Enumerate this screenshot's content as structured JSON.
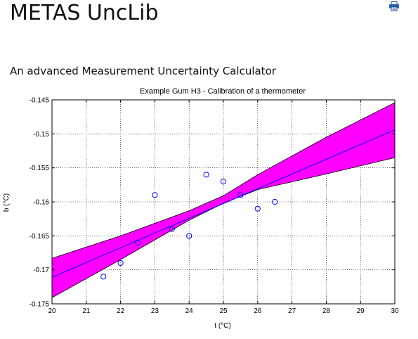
{
  "page": {
    "site_title": "METAS UncLib",
    "subtitle": "An advanced Measurement Uncertainty Calculator",
    "print_icon": "print-icon"
  },
  "colors": {
    "band": "#ff00ff",
    "fit_line": "#0000ff",
    "points": "#0000ff"
  },
  "chart_data": {
    "type": "scatter",
    "title": "Example Gum H3 - Calibration of a thermometer",
    "xlabel": "t (°C)",
    "ylabel": "b (°C)",
    "xlim": [
      20,
      30
    ],
    "ylim": [
      -0.175,
      -0.145
    ],
    "xticks": [
      20,
      21,
      22,
      23,
      24,
      25,
      26,
      27,
      28,
      29,
      30
    ],
    "yticks": [
      -0.175,
      -0.17,
      -0.165,
      -0.16,
      -0.155,
      -0.15,
      -0.145
    ],
    "ytick_labels": [
      "-0.175",
      "-0.17",
      "-0.165",
      "-0.16",
      "-0.155",
      "-0.15",
      "-0.145"
    ],
    "grid": true,
    "points": [
      {
        "x": 21.5,
        "y": -0.171
      },
      {
        "x": 22.0,
        "y": -0.169
      },
      {
        "x": 22.5,
        "y": -0.166
      },
      {
        "x": 23.0,
        "y": -0.159
      },
      {
        "x": 23.5,
        "y": -0.164
      },
      {
        "x": 24.0,
        "y": -0.165
      },
      {
        "x": 24.5,
        "y": -0.156
      },
      {
        "x": 25.0,
        "y": -0.157
      },
      {
        "x": 25.5,
        "y": -0.159
      },
      {
        "x": 26.0,
        "y": -0.161
      },
      {
        "x": 26.5,
        "y": -0.16
      }
    ],
    "fit_line": [
      {
        "x": 20,
        "y": -0.1711
      },
      {
        "x": 30,
        "y": -0.1494
      }
    ],
    "band_upper": [
      {
        "x": 20,
        "y": -0.1683
      },
      {
        "x": 22,
        "y": -0.165
      },
      {
        "x": 24,
        "y": -0.1613
      },
      {
        "x": 25,
        "y": -0.1591
      },
      {
        "x": 26,
        "y": -0.156
      },
      {
        "x": 28,
        "y": -0.1505
      },
      {
        "x": 30,
        "y": -0.1454
      }
    ],
    "band_lower": [
      {
        "x": 20,
        "y": -0.1741
      },
      {
        "x": 22,
        "y": -0.1685
      },
      {
        "x": 24,
        "y": -0.1627
      },
      {
        "x": 25,
        "y": -0.1602
      },
      {
        "x": 26,
        "y": -0.1582
      },
      {
        "x": 28,
        "y": -0.1559
      },
      {
        "x": 30,
        "y": -0.1535
      }
    ]
  }
}
